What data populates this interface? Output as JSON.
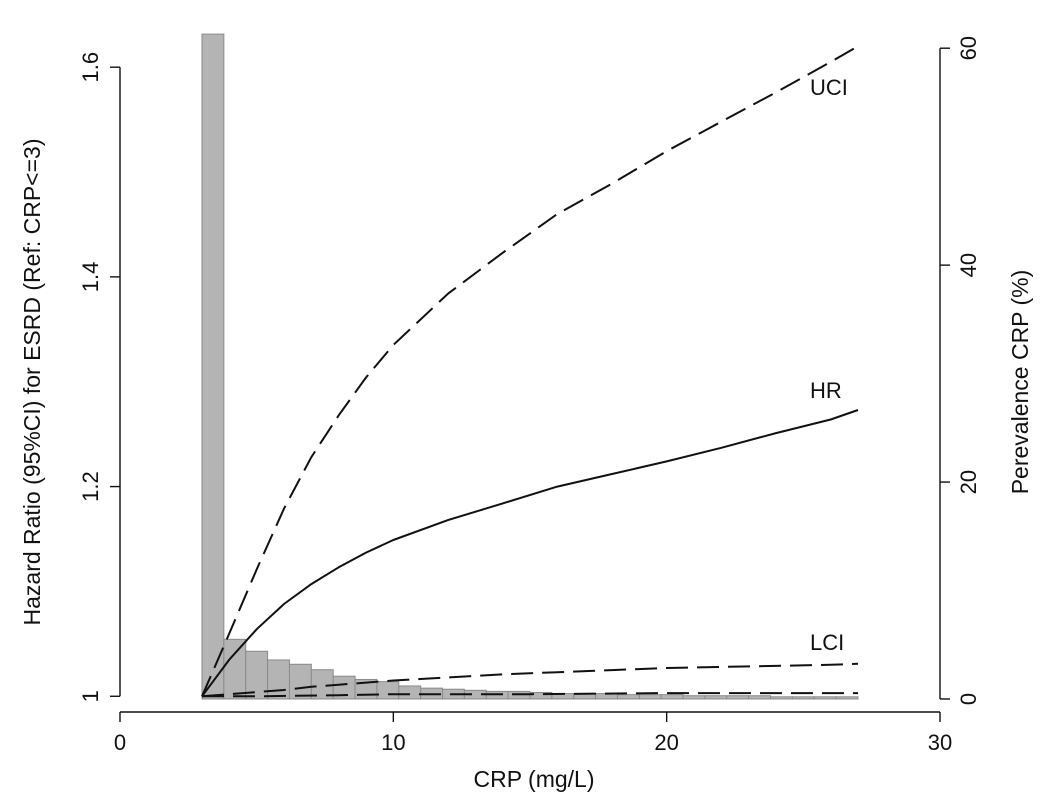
{
  "chart_data": {
    "type": "line",
    "xlabel": "CRP (mg/L)",
    "ylabel_left": "Hazard Ratio (95%CI) for ESRD (Ref: CRP<=3)",
    "ylabel_right": "Perevalence CRP (%)",
    "xlim": [
      0,
      30
    ],
    "x_ticks": [
      0,
      10,
      20,
      30
    ],
    "ylim_left": [
      0.985,
      1.645
    ],
    "y_ticks_left": [
      1,
      1.2,
      1.4,
      1.6
    ],
    "y_tick_labels_left": [
      "1",
      "1.2",
      "1.4",
      "1.6"
    ],
    "ylim_right": [
      -1.2,
      62.6
    ],
    "y_ticks_right": [
      0,
      20,
      40,
      60
    ],
    "grid": false,
    "series": [
      {
        "name": "UCI",
        "style": "dashed",
        "x": [
          3,
          4,
          5,
          6,
          7,
          8,
          9,
          10,
          12,
          14,
          16,
          18,
          20,
          22,
          24,
          26,
          27
        ],
        "values": [
          1.0,
          1.06,
          1.121,
          1.179,
          1.228,
          1.268,
          1.304,
          1.335,
          1.384,
          1.423,
          1.46,
          1.489,
          1.52,
          1.548,
          1.576,
          1.605,
          1.62
        ]
      },
      {
        "name": "HR",
        "style": "solid",
        "x": [
          3,
          4,
          5,
          6,
          7,
          8,
          9,
          10,
          12,
          14,
          16,
          18,
          20,
          22,
          24,
          26,
          27
        ],
        "values": [
          1.0,
          1.035,
          1.064,
          1.088,
          1.107,
          1.123,
          1.137,
          1.149,
          1.168,
          1.184,
          1.2,
          1.212,
          1.224,
          1.237,
          1.251,
          1.264,
          1.273
        ]
      },
      {
        "name": "LCI",
        "style": "dashed",
        "x": [
          3,
          4,
          5,
          6,
          7,
          8,
          9,
          10,
          12,
          14,
          16,
          18,
          20,
          22,
          24,
          26,
          27
        ],
        "values": [
          1.0,
          1.002,
          1.004,
          1.006,
          1.009,
          1.011,
          1.013,
          1.015,
          1.018,
          1.021,
          1.023,
          1.025,
          1.027,
          1.028,
          1.029,
          1.03,
          1.031
        ]
      },
      {
        "name": "",
        "style": "dashed",
        "x": [
          3,
          5,
          8,
          10,
          15,
          20,
          27
        ],
        "values": [
          1.0,
          1.0,
          1.001,
          1.002,
          1.002,
          1.003,
          1.003
        ]
      }
    ],
    "histogram": {
      "axis": "right",
      "bin_width": 0.8,
      "bins": [
        {
          "x0": 3.0,
          "value": 61.3
        },
        {
          "x0": 3.8,
          "value": 5.5
        },
        {
          "x0": 4.6,
          "value": 4.4
        },
        {
          "x0": 5.4,
          "value": 3.6
        },
        {
          "x0": 6.2,
          "value": 3.2
        },
        {
          "x0": 7.0,
          "value": 2.7
        },
        {
          "x0": 7.8,
          "value": 2.1
        },
        {
          "x0": 8.6,
          "value": 1.8
        },
        {
          "x0": 9.4,
          "value": 1.6
        },
        {
          "x0": 10.2,
          "value": 1.2
        },
        {
          "x0": 11.0,
          "value": 1.0
        },
        {
          "x0": 11.8,
          "value": 0.9
        },
        {
          "x0": 12.6,
          "value": 0.8
        },
        {
          "x0": 13.4,
          "value": 0.7
        },
        {
          "x0": 14.2,
          "value": 0.7
        },
        {
          "x0": 15.0,
          "value": 0.6
        },
        {
          "x0": 15.8,
          "value": 0.5
        },
        {
          "x0": 16.6,
          "value": 0.5
        },
        {
          "x0": 17.4,
          "value": 0.5
        },
        {
          "x0": 18.2,
          "value": 0.4
        },
        {
          "x0": 19.0,
          "value": 0.4
        },
        {
          "x0": 19.8,
          "value": 0.4
        },
        {
          "x0": 20.6,
          "value": 0.3
        },
        {
          "x0": 21.4,
          "value": 0.3
        },
        {
          "x0": 22.2,
          "value": 0.3
        },
        {
          "x0": 23.0,
          "value": 0.3
        },
        {
          "x0": 23.8,
          "value": 0.2
        },
        {
          "x0": 24.6,
          "value": 0.2
        },
        {
          "x0": 25.4,
          "value": 0.2
        },
        {
          "x0": 26.2,
          "value": 0.2
        }
      ]
    },
    "colors": {
      "bar_fill": "#b4b4b4",
      "bar_stroke": "#8a8a8a",
      "line": "#111111",
      "axis": "#111111"
    }
  }
}
